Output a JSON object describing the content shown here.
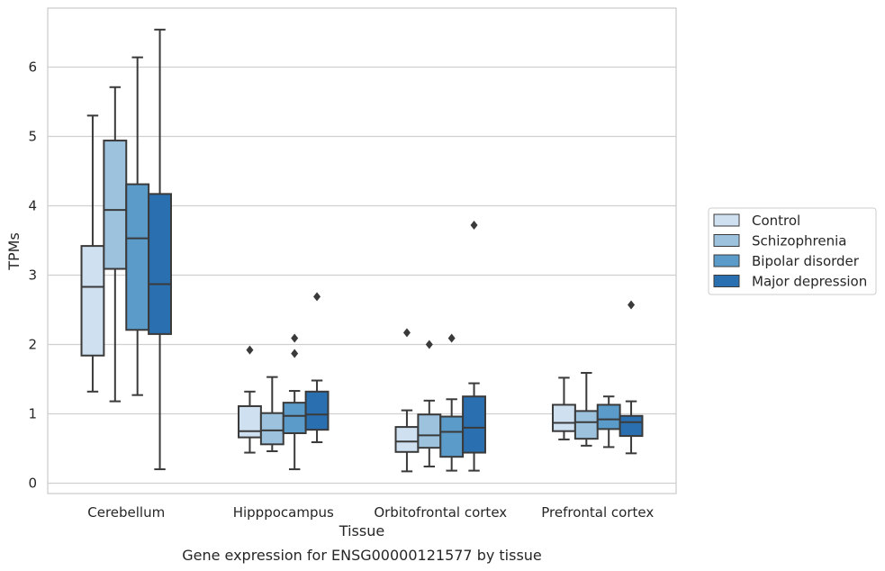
{
  "chart_data": {
    "type": "box",
    "xlabel": "Tissue",
    "ylabel": "TPMs",
    "caption": "Gene expression for ENSG00000121577 by tissue",
    "categories": [
      "Cerebellum",
      "Hipppocampus",
      "Orbitofrontal cortex",
      "Prefrontal cortex"
    ],
    "ylim": [
      -0.15,
      6.85
    ],
    "yticks": [
      0,
      1,
      2,
      3,
      4,
      5,
      6
    ],
    "grid": "horizontal",
    "legend_position": "right",
    "series": [
      {
        "name": "Control",
        "color": "#cfe0f0",
        "boxes": [
          {
            "whisker_low": 1.32,
            "q1": 1.84,
            "median": 2.83,
            "q3": 3.42,
            "whisker_high": 5.3,
            "outliers": []
          },
          {
            "whisker_low": 0.44,
            "q1": 0.66,
            "median": 0.75,
            "q3": 1.11,
            "whisker_high": 1.32,
            "outliers": [
              1.92
            ]
          },
          {
            "whisker_low": 0.17,
            "q1": 0.45,
            "median": 0.6,
            "q3": 0.81,
            "whisker_high": 1.05,
            "outliers": [
              2.17
            ]
          },
          {
            "whisker_low": 0.63,
            "q1": 0.75,
            "median": 0.87,
            "q3": 1.13,
            "whisker_high": 1.52,
            "outliers": []
          }
        ]
      },
      {
        "name": "Schizophrenia",
        "color": "#9cc2dd",
        "boxes": [
          {
            "whisker_low": 1.18,
            "q1": 3.09,
            "median": 3.94,
            "q3": 4.94,
            "whisker_high": 5.71,
            "outliers": []
          },
          {
            "whisker_low": 0.46,
            "q1": 0.56,
            "median": 0.76,
            "q3": 1.01,
            "whisker_high": 1.53,
            "outliers": []
          },
          {
            "whisker_low": 0.24,
            "q1": 0.51,
            "median": 0.69,
            "q3": 0.99,
            "whisker_high": 1.19,
            "outliers": [
              2.0
            ]
          },
          {
            "whisker_low": 0.54,
            "q1": 0.64,
            "median": 0.88,
            "q3": 1.04,
            "whisker_high": 1.59,
            "outliers": []
          }
        ]
      },
      {
        "name": "Bipolar disorder",
        "color": "#5b9bc9",
        "boxes": [
          {
            "whisker_low": 1.27,
            "q1": 2.21,
            "median": 3.53,
            "q3": 4.31,
            "whisker_high": 6.14,
            "outliers": []
          },
          {
            "whisker_low": 0.2,
            "q1": 0.72,
            "median": 0.97,
            "q3": 1.16,
            "whisker_high": 1.33,
            "outliers": [
              1.87,
              2.09
            ]
          },
          {
            "whisker_low": 0.18,
            "q1": 0.38,
            "median": 0.74,
            "q3": 0.96,
            "whisker_high": 1.21,
            "outliers": [
              2.09
            ]
          },
          {
            "whisker_low": 0.52,
            "q1": 0.78,
            "median": 0.92,
            "q3": 1.13,
            "whisker_high": 1.25,
            "outliers": []
          }
        ]
      },
      {
        "name": "Major depression",
        "color": "#2a6fb0",
        "boxes": [
          {
            "whisker_low": 0.2,
            "q1": 2.15,
            "median": 2.87,
            "q3": 4.17,
            "whisker_high": 6.54,
            "outliers": []
          },
          {
            "whisker_low": 0.59,
            "q1": 0.77,
            "median": 0.99,
            "q3": 1.32,
            "whisker_high": 1.48,
            "outliers": [
              2.69
            ]
          },
          {
            "whisker_low": 0.18,
            "q1": 0.44,
            "median": 0.8,
            "q3": 1.25,
            "whisker_high": 1.44,
            "outliers": [
              3.72
            ]
          },
          {
            "whisker_low": 0.43,
            "q1": 0.68,
            "median": 0.88,
            "q3": 0.97,
            "whisker_high": 1.18,
            "outliers": [
              2.57
            ]
          }
        ]
      }
    ]
  }
}
